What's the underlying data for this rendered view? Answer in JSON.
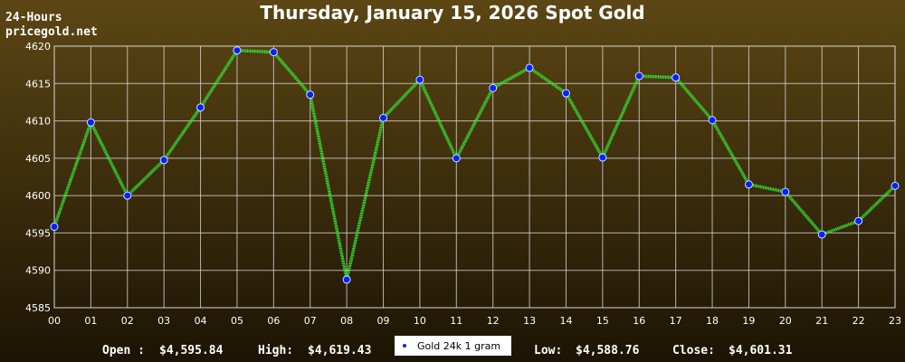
{
  "header": {
    "line1": "24-Hours",
    "line2": "pricegold.net"
  },
  "chart_data": {
    "type": "line",
    "title": "Thursday, January 15, 2026 Spot Gold",
    "categories": [
      "00",
      "01",
      "02",
      "03",
      "04",
      "05",
      "06",
      "07",
      "08",
      "09",
      "10",
      "11",
      "12",
      "13",
      "14",
      "15",
      "16",
      "17",
      "18",
      "19",
      "20",
      "21",
      "22",
      "23"
    ],
    "series": [
      {
        "name": "Gold 24k 1 gram",
        "color": "#33ee33",
        "marker_color": "#0022ff",
        "values": [
          4595.84,
          4609.8,
          4600.0,
          4604.75,
          4611.8,
          4619.43,
          4619.2,
          4613.5,
          4588.76,
          4610.4,
          4615.5,
          4605.0,
          4614.4,
          4617.1,
          4613.7,
          4605.1,
          4616.0,
          4615.8,
          4610.1,
          4601.5,
          4600.5,
          4594.8,
          4596.6,
          4601.31
        ]
      }
    ],
    "ylim": [
      4585,
      4620
    ],
    "yticks": [
      4585,
      4590,
      4595,
      4600,
      4605,
      4610,
      4615,
      4620
    ],
    "grid": true
  },
  "stats": [
    {
      "label": "Open :",
      "value": "$4,595.84"
    },
    {
      "label": "High:",
      "value": "$4,619.43"
    },
    {
      "label": "Low:",
      "value": "$4,588.76"
    },
    {
      "label": "Close:",
      "value": "$4,601.31"
    }
  ]
}
